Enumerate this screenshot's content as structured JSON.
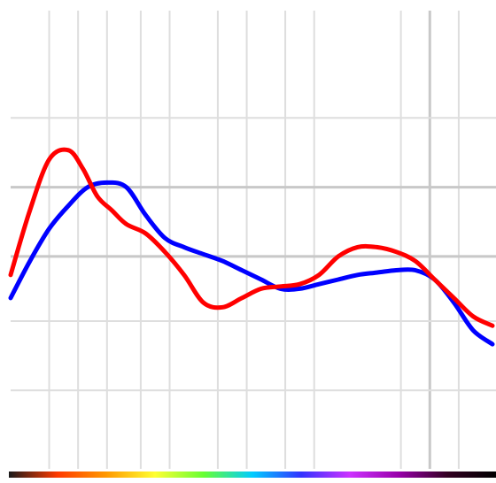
{
  "chart_data": {
    "type": "line",
    "title": "",
    "xlabel": "",
    "ylabel": "",
    "grid": true,
    "legend": "none",
    "x_range": [
      0,
      100
    ],
    "y_range": [
      0,
      100
    ],
    "vertical_gridlines": [
      8,
      14,
      20,
      27,
      33,
      43,
      49,
      57,
      63,
      81,
      87,
      93
    ],
    "vertical_gridlines_major": [
      87
    ],
    "horizontal_gridlines": [
      17,
      32,
      46,
      61,
      76
    ],
    "horizontal_gridlines_major": [
      46,
      61
    ],
    "spectrum_bar": {
      "colors": [
        "#1a1a1a",
        "#ff3b00",
        "#ff9900",
        "#ffff33",
        "#66ff33",
        "#00ccff",
        "#3333ff",
        "#cc33ff",
        "#9900aa",
        "#330022",
        "#000000"
      ]
    },
    "series": [
      {
        "color": "#ff0000",
        "x": [
          0,
          4,
          8,
          12,
          15,
          18,
          21,
          24,
          28,
          32,
          36,
          40,
          44,
          48,
          52,
          56,
          60,
          64,
          68,
          72,
          76,
          80,
          84,
          88,
          92,
          96,
          100
        ],
        "y": [
          42,
          56,
          67,
          69,
          65,
          59,
          56,
          53,
          51,
          47,
          42,
          36,
          35,
          37,
          39,
          39.5,
          40,
          42,
          46,
          48,
          48,
          47,
          45,
          41,
          37,
          33,
          31
        ]
      },
      {
        "color": "#0000ff",
        "x": [
          0,
          4,
          8,
          12,
          16,
          20,
          24,
          28,
          32,
          36,
          40,
          44,
          48,
          52,
          56,
          60,
          64,
          68,
          72,
          76,
          80,
          84,
          88,
          92,
          96,
          100
        ],
        "y": [
          37,
          45,
          52,
          57,
          61,
          62,
          61,
          55,
          50,
          48,
          46.5,
          45,
          43,
          41,
          39,
          39,
          40,
          41,
          42,
          42.5,
          43,
          43,
          41,
          36,
          30,
          27
        ]
      }
    ]
  }
}
